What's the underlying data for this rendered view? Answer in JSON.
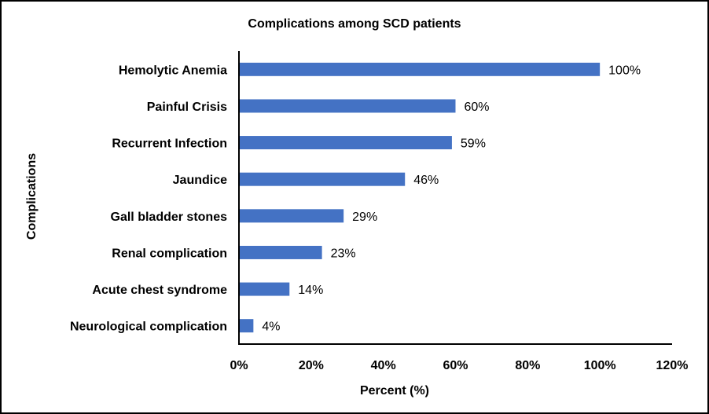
{
  "chart_data": {
    "type": "bar",
    "orientation": "horizontal",
    "title": "Complications among SCD patients",
    "xlabel": "Percent (%)",
    "ylabel": "Complications",
    "categories": [
      "Hemolytic Anemia",
      "Painful Crisis",
      "Recurrent Infection",
      "Jaundice",
      "Gall bladder stones",
      "Renal complication",
      "Acute chest syndrome",
      "Neurological complication"
    ],
    "values": [
      100,
      60,
      59,
      46,
      29,
      23,
      14,
      4
    ],
    "data_labels": [
      "100%",
      "60%",
      "59%",
      "46%",
      "29%",
      "23%",
      "14%",
      "4%"
    ],
    "xlim": [
      0,
      120
    ],
    "x_ticks": [
      0,
      20,
      40,
      60,
      80,
      100,
      120
    ],
    "x_tick_labels": [
      "0%",
      "20%",
      "40%",
      "60%",
      "80%",
      "100%",
      "120%"
    ],
    "grid": false,
    "legend": "none",
    "bar_color": "#4472C4"
  }
}
